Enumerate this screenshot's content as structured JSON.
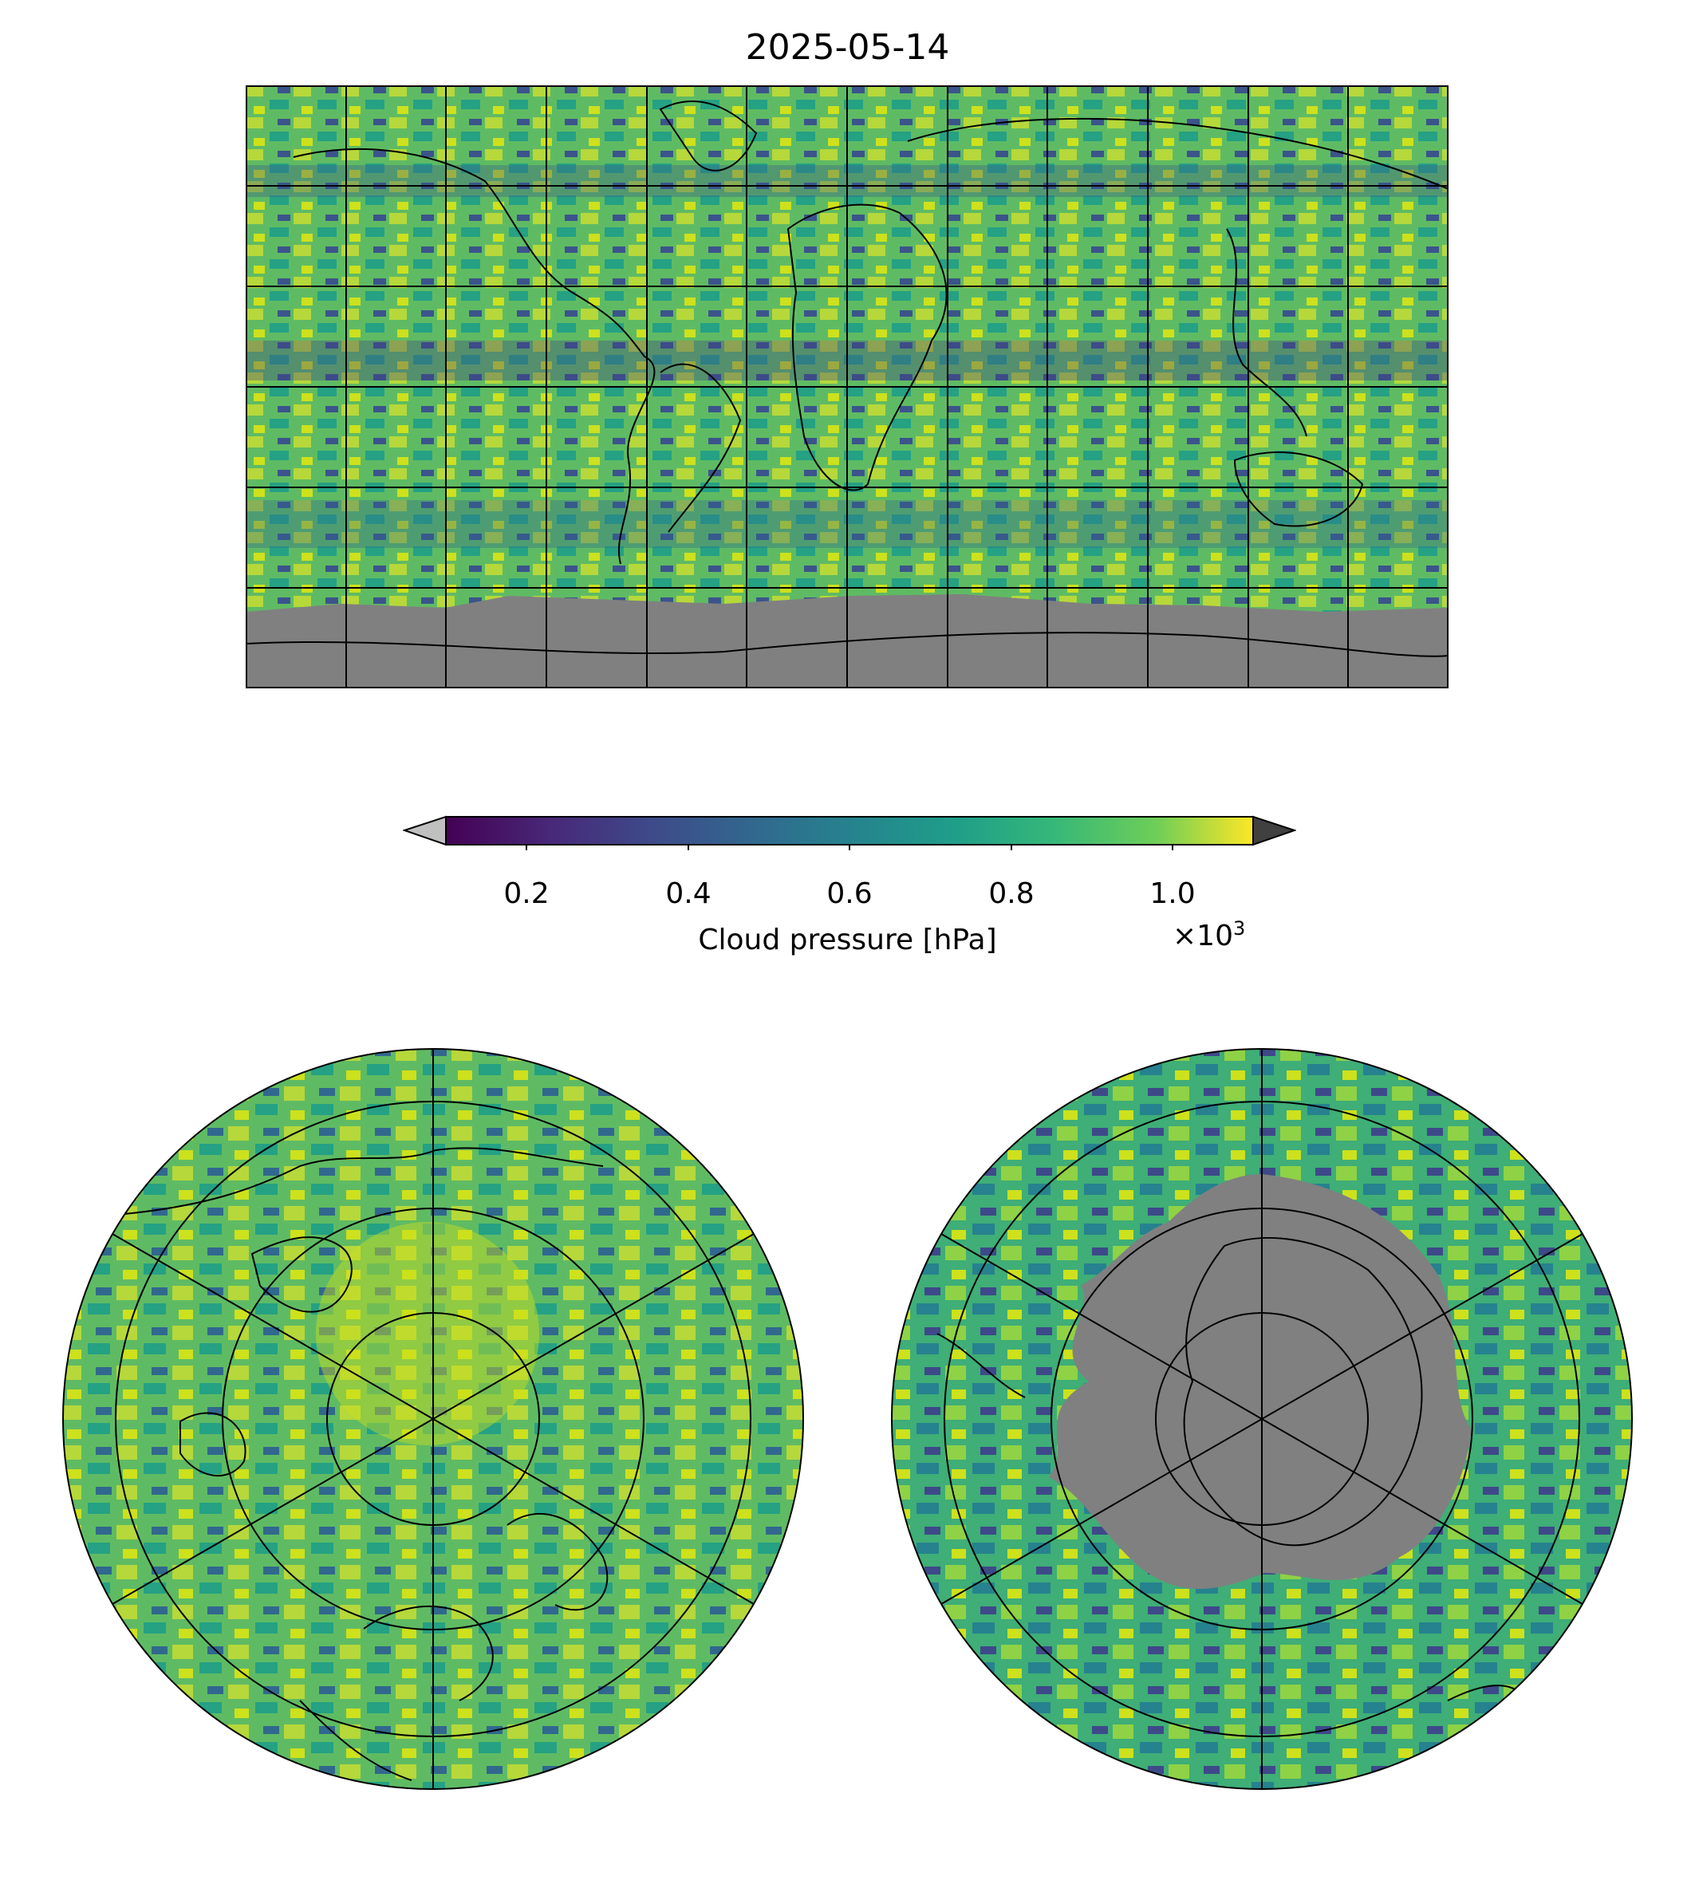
{
  "title": "2025-05-14",
  "colorbar": {
    "label": "Cloud pressure [hPa]",
    "multiplier_base": "×10",
    "multiplier_exp": "3",
    "ticks": [
      "0.2",
      "0.4",
      "0.6",
      "0.8",
      "1.0"
    ],
    "range": [
      0.1,
      1.1
    ],
    "colormap": "viridis",
    "under_color": "#c0c0c0",
    "over_color": "#404040"
  },
  "maps": [
    {
      "name": "global-equirectangular",
      "graticule_lon_step_deg": 30,
      "graticule_lat_step_deg": 30,
      "nodata_color": "#808080"
    },
    {
      "name": "north-polar-stereographic"
    },
    {
      "name": "south-polar-stereographic",
      "nodata_color": "#808080"
    }
  ]
}
